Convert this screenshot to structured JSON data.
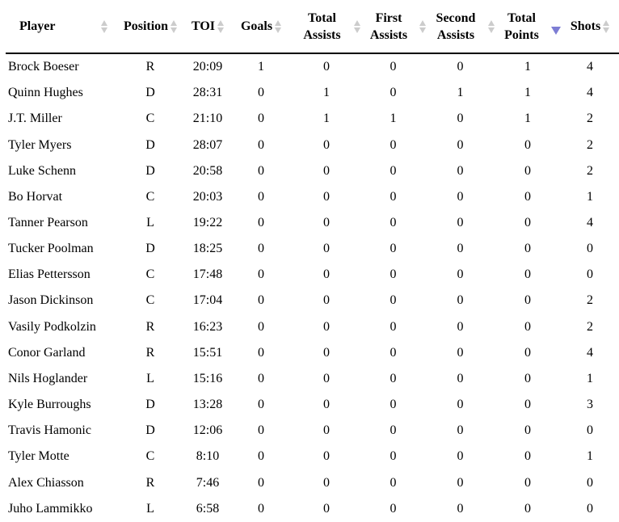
{
  "table": {
    "colors": {
      "sort_inactive": "#cccccc",
      "sort_active": "#7d7dd4",
      "header_border": "#000000",
      "text": "#000000",
      "background": "#ffffff"
    },
    "columns": [
      {
        "key": "player",
        "label": "Player",
        "sort_state": "unsorted"
      },
      {
        "key": "position",
        "label": "Position",
        "sort_state": "unsorted"
      },
      {
        "key": "toi",
        "label": "TOI",
        "sort_state": "unsorted"
      },
      {
        "key": "goals",
        "label": "Goals",
        "sort_state": "unsorted"
      },
      {
        "key": "total_assists",
        "label": "Total Assists",
        "sort_state": "unsorted"
      },
      {
        "key": "first_assists",
        "label": "First Assists",
        "sort_state": "unsorted"
      },
      {
        "key": "second_assists",
        "label": "Second Assists",
        "sort_state": "unsorted"
      },
      {
        "key": "total_points",
        "label": "Total Points",
        "sort_state": "descending"
      },
      {
        "key": "shots",
        "label": "Shots",
        "sort_state": "unsorted"
      }
    ],
    "rows": [
      {
        "player": "Brock Boeser",
        "position": "R",
        "toi": "20:09",
        "goals": "1",
        "total_assists": "0",
        "first_assists": "0",
        "second_assists": "0",
        "total_points": "1",
        "shots": "4"
      },
      {
        "player": "Quinn Hughes",
        "position": "D",
        "toi": "28:31",
        "goals": "0",
        "total_assists": "1",
        "first_assists": "0",
        "second_assists": "1",
        "total_points": "1",
        "shots": "4"
      },
      {
        "player": "J.T. Miller",
        "position": "C",
        "toi": "21:10",
        "goals": "0",
        "total_assists": "1",
        "first_assists": "1",
        "second_assists": "0",
        "total_points": "1",
        "shots": "2"
      },
      {
        "player": "Tyler Myers",
        "position": "D",
        "toi": "28:07",
        "goals": "0",
        "total_assists": "0",
        "first_assists": "0",
        "second_assists": "0",
        "total_points": "0",
        "shots": "2"
      },
      {
        "player": "Luke Schenn",
        "position": "D",
        "toi": "20:58",
        "goals": "0",
        "total_assists": "0",
        "first_assists": "0",
        "second_assists": "0",
        "total_points": "0",
        "shots": "2"
      },
      {
        "player": "Bo Horvat",
        "position": "C",
        "toi": "20:03",
        "goals": "0",
        "total_assists": "0",
        "first_assists": "0",
        "second_assists": "0",
        "total_points": "0",
        "shots": "1"
      },
      {
        "player": "Tanner Pearson",
        "position": "L",
        "toi": "19:22",
        "goals": "0",
        "total_assists": "0",
        "first_assists": "0",
        "second_assists": "0",
        "total_points": "0",
        "shots": "4"
      },
      {
        "player": "Tucker Poolman",
        "position": "D",
        "toi": "18:25",
        "goals": "0",
        "total_assists": "0",
        "first_assists": "0",
        "second_assists": "0",
        "total_points": "0",
        "shots": "0"
      },
      {
        "player": "Elias Pettersson",
        "position": "C",
        "toi": "17:48",
        "goals": "0",
        "total_assists": "0",
        "first_assists": "0",
        "second_assists": "0",
        "total_points": "0",
        "shots": "0"
      },
      {
        "player": "Jason Dickinson",
        "position": "C",
        "toi": "17:04",
        "goals": "0",
        "total_assists": "0",
        "first_assists": "0",
        "second_assists": "0",
        "total_points": "0",
        "shots": "2"
      },
      {
        "player": "Vasily Podkolzin",
        "position": "R",
        "toi": "16:23",
        "goals": "0",
        "total_assists": "0",
        "first_assists": "0",
        "second_assists": "0",
        "total_points": "0",
        "shots": "2"
      },
      {
        "player": "Conor Garland",
        "position": "R",
        "toi": "15:51",
        "goals": "0",
        "total_assists": "0",
        "first_assists": "0",
        "second_assists": "0",
        "total_points": "0",
        "shots": "4"
      },
      {
        "player": "Nils Hoglander",
        "position": "L",
        "toi": "15:16",
        "goals": "0",
        "total_assists": "0",
        "first_assists": "0",
        "second_assists": "0",
        "total_points": "0",
        "shots": "1"
      },
      {
        "player": "Kyle Burroughs",
        "position": "D",
        "toi": "13:28",
        "goals": "0",
        "total_assists": "0",
        "first_assists": "0",
        "second_assists": "0",
        "total_points": "0",
        "shots": "3"
      },
      {
        "player": "Travis Hamonic",
        "position": "D",
        "toi": "12:06",
        "goals": "0",
        "total_assists": "0",
        "first_assists": "0",
        "second_assists": "0",
        "total_points": "0",
        "shots": "0"
      },
      {
        "player": "Tyler Motte",
        "position": "C",
        "toi": "8:10",
        "goals": "0",
        "total_assists": "0",
        "first_assists": "0",
        "second_assists": "0",
        "total_points": "0",
        "shots": "1"
      },
      {
        "player": "Alex Chiasson",
        "position": "R",
        "toi": "7:46",
        "goals": "0",
        "total_assists": "0",
        "first_assists": "0",
        "second_assists": "0",
        "total_points": "0",
        "shots": "0"
      },
      {
        "player": "Juho Lammikko",
        "position": "L",
        "toi": "6:58",
        "goals": "0",
        "total_assists": "0",
        "first_assists": "0",
        "second_assists": "0",
        "total_points": "0",
        "shots": "0"
      }
    ]
  }
}
